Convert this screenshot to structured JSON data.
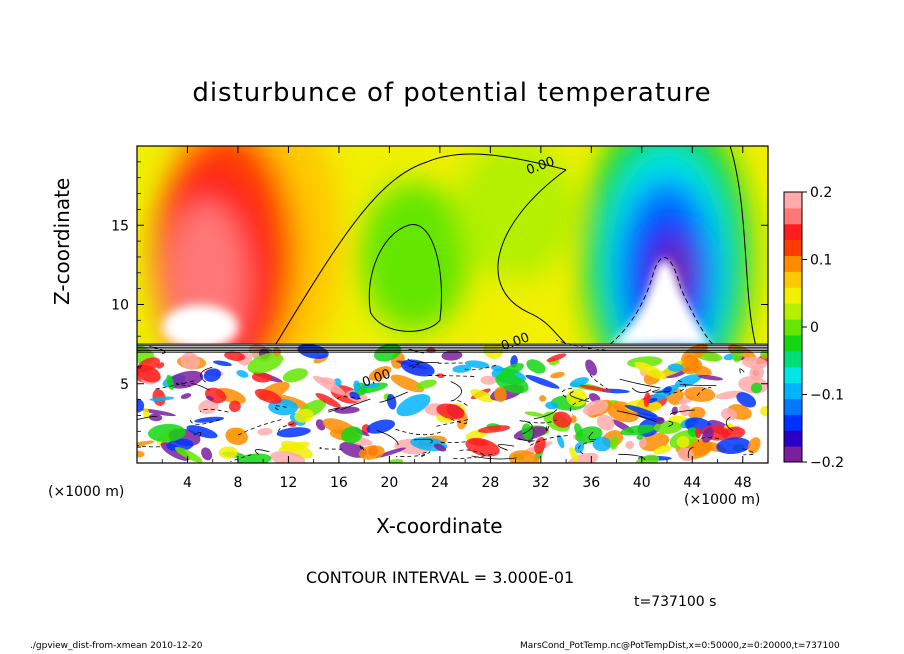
{
  "chart_data": {
    "type": "heatmap",
    "title": "disturbunce of potential temperature",
    "xlabel": "X-coordinate",
    "ylabel": "Z-coordinate",
    "x_unit_label": "(×1000 m)",
    "xlim": [
      0,
      50
    ],
    "ylim": [
      0,
      20
    ],
    "x_ticks": [
      4,
      8,
      12,
      16,
      20,
      24,
      28,
      32,
      36,
      40,
      44,
      48
    ],
    "y_ticks": [
      5,
      10,
      15
    ],
    "colorbar": {
      "min": -0.2,
      "max": 0.2,
      "ticks": [
        0.2,
        0.1,
        0,
        -0.1,
        -0.2
      ],
      "tick_labels": [
        "0.2",
        "0.1",
        "0",
        "−0.1",
        "−0.2"
      ],
      "colors": [
        "#7a1fa0",
        "#2a00c8",
        "#0032ff",
        "#0078ff",
        "#00b4ff",
        "#00e6e6",
        "#00dc78",
        "#14d714",
        "#64e600",
        "#b4f000",
        "#f0f000",
        "#ffc800",
        "#ff8c00",
        "#ff3c00",
        "#ff1e1e",
        "#ff7878",
        "#ffaaaa"
      ]
    },
    "contour_labels": [
      "0.00",
      "0.00",
      "0.00"
    ],
    "contour_interval_text": "CONTOUR INTERVAL = 3.000E-01",
    "features": [
      {
        "kind": "warm-anomaly",
        "x_center": 6,
        "z_center": 12,
        "value": 0.18
      },
      {
        "kind": "cold-anomaly",
        "x_center": 42,
        "z_center": 12,
        "value": -0.18
      },
      {
        "kind": "zero-contour-region",
        "x_center": 22,
        "z_center": 13,
        "value": 0.0
      },
      {
        "kind": "turbulent-layer",
        "z_top": 7.5
      }
    ]
  },
  "annotations": {
    "time": "t=737100 s",
    "footer_left": "./gpview_dist-from-xmean  2010-12-20",
    "footer_right": "MarsCond_PotTemp.nc@PotTempDist,x=0:50000,z=0:20000,t=737100"
  }
}
